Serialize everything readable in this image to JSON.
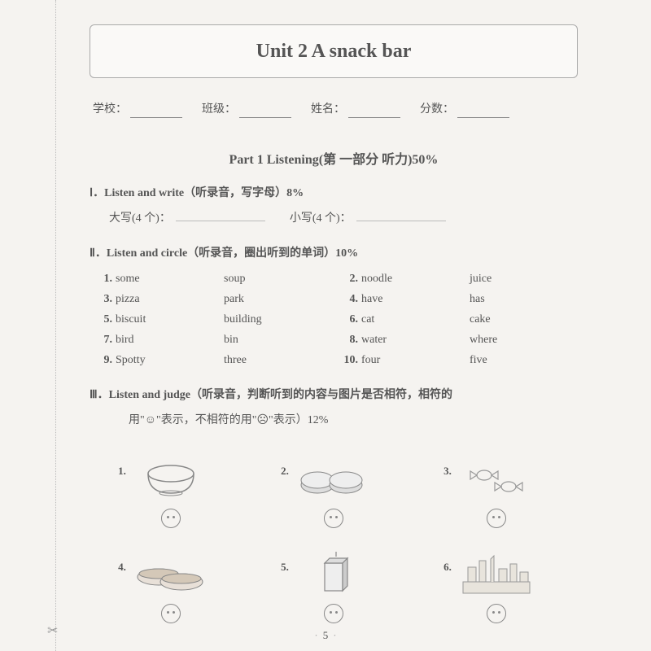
{
  "title": "Unit 2   A snack bar",
  "info_labels": {
    "school": "学校：",
    "class": "班级：",
    "name": "姓名：",
    "score": "分数："
  },
  "part1_title": "Part 1   Listening(第 一部分   听力)50%",
  "sec1": {
    "title": "Ⅰ．Listen and write（听录音，写字母）8%",
    "upper_label": "大写(4 个)：",
    "lower_label": "小写(4 个)："
  },
  "sec2": {
    "title": "Ⅱ．Listen and circle（听录音，圈出听到的单词）10%",
    "rows": [
      {
        "n1": "1.",
        "a1": "some",
        "b1": "soup",
        "n2": "2.",
        "a2": "noodle",
        "b2": "juice"
      },
      {
        "n1": "3.",
        "a1": "pizza",
        "b1": "park",
        "n2": "4.",
        "a2": "have",
        "b2": "has"
      },
      {
        "n1": "5.",
        "a1": "biscuit",
        "b1": "building",
        "n2": "6.",
        "a2": "cat",
        "b2": "cake"
      },
      {
        "n1": "7.",
        "a1": "bird",
        "b1": "bin",
        "n2": "8.",
        "a2": "water",
        "b2": "where"
      },
      {
        "n1": "9.",
        "a1": "Spotty",
        "b1": "three",
        "n2": "10.",
        "a2": "four",
        "b2": "five"
      }
    ]
  },
  "sec3": {
    "title": "Ⅲ．Listen and judge（听录音，判断听到的内容与图片是否相符，相符的",
    "title2": "用\"☺\"表示，不相符的用\"☹\"表示）12%",
    "items": [
      {
        "n": "1.",
        "alt": "bowl"
      },
      {
        "n": "2.",
        "alt": "two pies"
      },
      {
        "n": "3.",
        "alt": "candy"
      },
      {
        "n": "4.",
        "alt": "hot dogs"
      },
      {
        "n": "5.",
        "alt": "juice box"
      },
      {
        "n": "6.",
        "alt": "city view"
      }
    ]
  },
  "page_number": "5",
  "colors": {
    "text": "#555555",
    "bg": "#f5f3f0",
    "border": "#aaaaaa"
  }
}
